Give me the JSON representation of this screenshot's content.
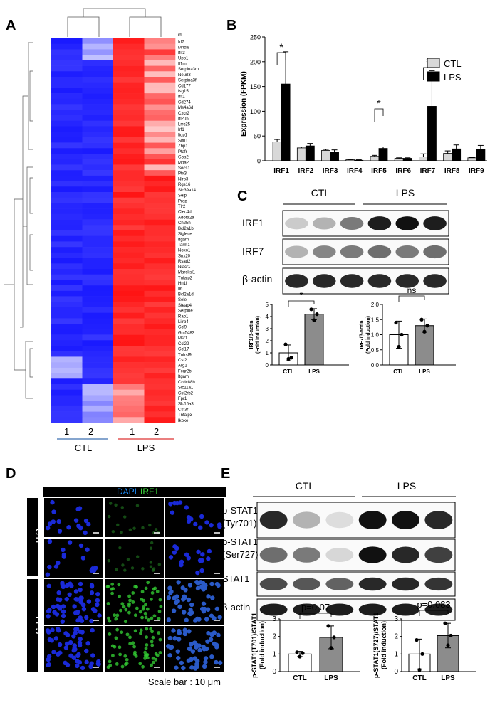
{
  "panels": {
    "A": "A",
    "B": "B",
    "C": "C",
    "D": "D",
    "E": "E"
  },
  "heatmap": {
    "id_label": "id",
    "genes": [
      "Irf7",
      "Mnda",
      "Ifit3",
      "Upp1",
      "Il1rn",
      "Serpina3m",
      "Neurl3",
      "Serpina3f",
      "Cd177",
      "Isg15",
      "Ifit1",
      "Cd274",
      "Ms4a6d",
      "Cxcr2",
      "Ifi205",
      "Lrrc25",
      "Irf1",
      "Iigp1",
      "Slfn1",
      "Zbp1",
      "Ptafr",
      "Gbp2",
      "Mpa2l",
      "Socs1",
      "Ptx3",
      "Nlrp3",
      "Rgs16",
      "Slc39a14",
      "Selp",
      "Prep",
      "Tlr2",
      "Clec4d",
      "Adora2a",
      "Ch25h",
      "Bcl2a1b",
      "Siglece",
      "Itgam",
      "Tarm1",
      "Noxo1",
      "Snx20",
      "Rsad2",
      "Niacr1",
      "Marcksl1",
      "Tnfaip2",
      "Hn1l",
      "Il6",
      "Bcl2a1d",
      "Sele",
      "Steap4",
      "Serpine1",
      "Rab1",
      "Lilrb4",
      "Ccl9",
      "Gm5483",
      "Msr1",
      "Ccl22",
      "Ccl17",
      "Tnfrsf9",
      "Csf2",
      "Arg1",
      "Fcgr2b",
      "Itgam",
      "Ccdc88b",
      "Slc11a1",
      "Csf2rb2",
      "Fpr1",
      "Slc15a3",
      "Csf3r",
      "Tnfaip3",
      "Ikbke"
    ],
    "columns": [
      "1",
      "2",
      "1",
      "2"
    ],
    "groups": [
      "CTL",
      "LPS"
    ],
    "colors": {
      "ctl_line": "#3c6fb0",
      "lps_line": "#d33",
      "blue": "#1a1aff",
      "red": "#ff1a1a"
    }
  },
  "chart_b": {
    "type": "bar",
    "ylabel": "Expression (FPKM)",
    "categories": [
      "IRF1",
      "IRF2",
      "IRF3",
      "IRF4",
      "IRF5",
      "IRF6",
      "IRF7",
      "IRF8",
      "IRF9"
    ],
    "series": [
      {
        "name": "CTL",
        "values": [
          38,
          26,
          21,
          2,
          9,
          5,
          8,
          15,
          6
        ],
        "errors": [
          5,
          2,
          2,
          1,
          2,
          1,
          6,
          5,
          1
        ]
      },
      {
        "name": "LPS",
        "values": [
          155,
          30,
          17,
          1,
          25,
          5,
          110,
          24,
          23
        ],
        "errors": [
          65,
          5,
          5,
          1,
          3,
          1,
          72,
          8,
          8
        ]
      }
    ],
    "ylim": [
      0,
      250
    ],
    "yticks": [
      "0",
      "50",
      "100",
      "150",
      "200",
      "250"
    ],
    "sig": [
      "*",
      "*",
      "*"
    ]
  },
  "blot_c": {
    "groups": [
      "CTL",
      "LPS"
    ],
    "rows": [
      "IRF1",
      "IRF7",
      "β-actin"
    ]
  },
  "chart_c": [
    {
      "type": "bar",
      "ylabel": "IRF1/β-actin\n(Fold induction)",
      "ylabel1": "IRF1/β-actin",
      "ylabel2": "(Fold induction)",
      "categories": [
        "CTL",
        "LPS"
      ],
      "values": [
        1,
        4.2
      ],
      "errors": [
        0.65,
        0.45
      ],
      "points": [
        [
          1.7,
          0.5,
          0.6
        ],
        [
          4.6,
          3.7,
          4.2
        ]
      ],
      "ylim": [
        0,
        5
      ],
      "yticks": [
        "0",
        "1",
        "2",
        "3",
        "4",
        "5"
      ],
      "sig": "*"
    },
    {
      "type": "bar",
      "ylabel1": "IRF7/β-actin",
      "ylabel2": "(Fold induction)",
      "categories": [
        "CTL",
        "LPS"
      ],
      "values": [
        1,
        1.3
      ],
      "errors": [
        0.45,
        0.22
      ],
      "points": [
        [
          1.4,
          0.6,
          1.0
        ],
        [
          1.5,
          1.1,
          1.3
        ]
      ],
      "ylim": [
        0,
        2.0
      ],
      "yticks": [
        "0.0",
        "0.5",
        "1.0",
        "1.5",
        "2.0"
      ],
      "sig": "ns"
    }
  ],
  "panel_d": {
    "labels": [
      "DAPI",
      "IRF1"
    ],
    "rows": [
      "CTL",
      "LPS"
    ],
    "scale_bar": "Scale bar : 10 μm",
    "colors": {
      "dapi": "#1e90ff",
      "irf1": "#3ee23e"
    }
  },
  "blot_e": {
    "groups": [
      "CTL",
      "LPS"
    ],
    "rows": [
      {
        "l1": "p-STAT1",
        "l2": "(Tyr701)"
      },
      {
        "l1": "p-STAT1",
        "l2": "(Ser727)"
      },
      {
        "l1": "STAT1",
        "l2": ""
      },
      {
        "l1": "β-actin",
        "l2": ""
      }
    ]
  },
  "chart_e": [
    {
      "type": "bar",
      "ylabel1": "p-STAT1(T701)/STAT1",
      "ylabel2": "(Fold induction)",
      "categories": [
        "CTL",
        "LPS"
      ],
      "values": [
        1,
        1.95
      ],
      "errors": [
        0.15,
        0.65
      ],
      "points": [
        [
          1.1,
          0.85,
          1.05
        ],
        [
          2.6,
          1.35,
          1.95
        ]
      ],
      "ylim": [
        0,
        3
      ],
      "yticks": [
        "0",
        "1",
        "2",
        "3"
      ],
      "pval": "p=0.07"
    },
    {
      "type": "bar",
      "ylabel1": "p-STAT1(S727)/STAT1",
      "ylabel2": "(Fold induction)",
      "categories": [
        "CTL",
        "LPS"
      ],
      "values": [
        1,
        2.05
      ],
      "errors": [
        0.85,
        0.7
      ],
      "points": [
        [
          1.8,
          0.1,
          1.0
        ],
        [
          2.75,
          1.5,
          2.05
        ]
      ],
      "ylim": [
        0,
        3
      ],
      "yticks": [
        "0",
        "1",
        "2",
        "3"
      ],
      "pval": "p=0.083"
    }
  ]
}
